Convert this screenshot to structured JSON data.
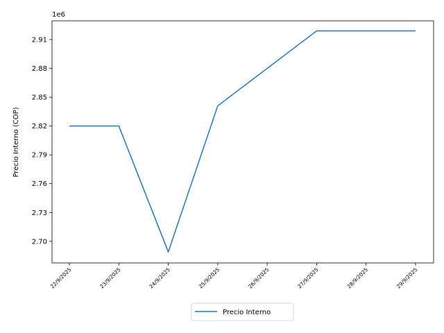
{
  "chart_data": {
    "type": "line",
    "title": "",
    "xlabel": "",
    "ylabel": "Precio Interno (COP)",
    "y_offset_label": "1e6",
    "categories": [
      "22/9/2025",
      "23/9/2025",
      "24/9/2025",
      "25/9/2025",
      "26/9/2025",
      "27/9/2025",
      "28/9/2025",
      "29/9/2025"
    ],
    "series": [
      {
        "name": "Precio Interno",
        "color": "#1f77b4",
        "x": [
          "22/9/2025",
          "23/9/2025",
          "24/9/2025",
          "25/9/2025",
          "27/9/2025",
          "28/9/2025",
          "29/9/2025"
        ],
        "values": [
          2820000,
          2820000,
          2689000,
          2841000,
          2919000,
          2919000,
          2919000
        ]
      }
    ],
    "y_ticks": [
      2.7,
      2.73,
      2.76,
      2.79,
      2.82,
      2.85,
      2.88,
      2.91
    ],
    "y_tick_labels": [
      "2.70",
      "2.73",
      "2.76",
      "2.79",
      "2.82",
      "2.85",
      "2.88",
      "2.91"
    ],
    "ylim": [
      2677500,
      2929500
    ],
    "grid": false,
    "legend_placement": "bottom-center"
  }
}
